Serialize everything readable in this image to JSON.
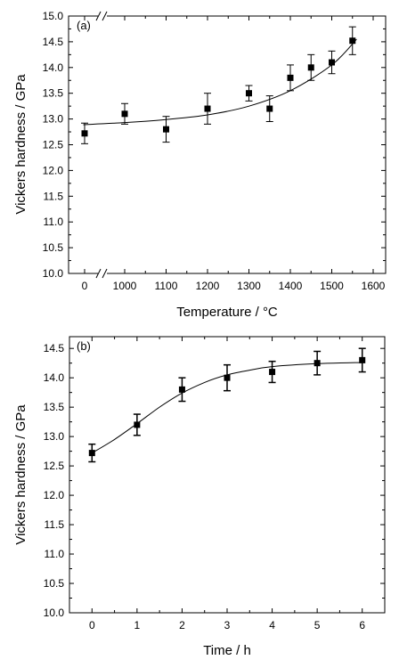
{
  "chart_data": [
    {
      "type": "scatter",
      "panel_label": "(a)",
      "xlabel": "Temperature / ",
      "xlabel_unit": "°C",
      "ylabel": "Vickers hardness / GPa",
      "axis_break": "x between 0 and ~900",
      "x_ticks": [
        "0",
        "1000",
        "1100",
        "1200",
        "1300",
        "1400",
        "1500",
        "1600"
      ],
      "y_ticks": [
        "10.0",
        "10.5",
        "11.0",
        "11.5",
        "12.0",
        "12.5",
        "13.0",
        "13.5",
        "14.0",
        "14.5",
        "15.0"
      ],
      "ylim": [
        10.0,
        15.0
      ],
      "points": [
        {
          "x": 0,
          "y": 12.72,
          "err": 0.2
        },
        {
          "x": 1000,
          "y": 13.1,
          "err": 0.2
        },
        {
          "x": 1100,
          "y": 12.8,
          "err": 0.25
        },
        {
          "x": 1200,
          "y": 13.2,
          "err": 0.3
        },
        {
          "x": 1300,
          "y": 13.5,
          "err": 0.15
        },
        {
          "x": 1350,
          "y": 13.2,
          "err": 0.25
        },
        {
          "x": 1400,
          "y": 13.8,
          "err": 0.25
        },
        {
          "x": 1450,
          "y": 14.0,
          "err": 0.25
        },
        {
          "x": 1500,
          "y": 14.1,
          "err": 0.22
        },
        {
          "x": 1550,
          "y": 14.52,
          "err": 0.27
        }
      ],
      "fit_curve": [
        {
          "x": 900,
          "y": 12.89
        },
        {
          "x": 1000,
          "y": 12.93
        },
        {
          "x": 1100,
          "y": 12.99
        },
        {
          "x": 1200,
          "y": 13.08
        },
        {
          "x": 1300,
          "y": 13.25
        },
        {
          "x": 1400,
          "y": 13.55
        },
        {
          "x": 1500,
          "y": 14.05
        },
        {
          "x": 1560,
          "y": 14.55
        }
      ]
    },
    {
      "type": "scatter",
      "panel_label": "(b)",
      "xlabel": "Time / h",
      "ylabel": "Vickers hardness / GPa",
      "x_ticks": [
        "0",
        "1",
        "2",
        "3",
        "4",
        "5",
        "6"
      ],
      "y_ticks": [
        "10.0",
        "10.5",
        "11.0",
        "11.5",
        "12.0",
        "12.5",
        "13.0",
        "13.5",
        "14.0",
        "14.5"
      ],
      "ylim": [
        10.0,
        14.7
      ],
      "xlim": [
        -0.5,
        6.5
      ],
      "points": [
        {
          "x": 0,
          "y": 12.72,
          "err": 0.15
        },
        {
          "x": 1,
          "y": 13.2,
          "err": 0.18
        },
        {
          "x": 2,
          "y": 13.8,
          "err": 0.2
        },
        {
          "x": 3,
          "y": 14.0,
          "err": 0.22
        },
        {
          "x": 4,
          "y": 14.1,
          "err": 0.18
        },
        {
          "x": 5,
          "y": 14.25,
          "err": 0.2
        },
        {
          "x": 6,
          "y": 14.3,
          "err": 0.2
        }
      ],
      "fit_curve": [
        {
          "x": 0,
          "y": 12.72
        },
        {
          "x": 0.5,
          "y": 12.95
        },
        {
          "x": 1,
          "y": 13.22
        },
        {
          "x": 1.5,
          "y": 13.5
        },
        {
          "x": 2,
          "y": 13.74
        },
        {
          "x": 2.5,
          "y": 13.92
        },
        {
          "x": 3,
          "y": 14.05
        },
        {
          "x": 3.5,
          "y": 14.13
        },
        {
          "x": 4,
          "y": 14.19
        },
        {
          "x": 5,
          "y": 14.24
        },
        {
          "x": 6,
          "y": 14.26
        }
      ]
    }
  ]
}
